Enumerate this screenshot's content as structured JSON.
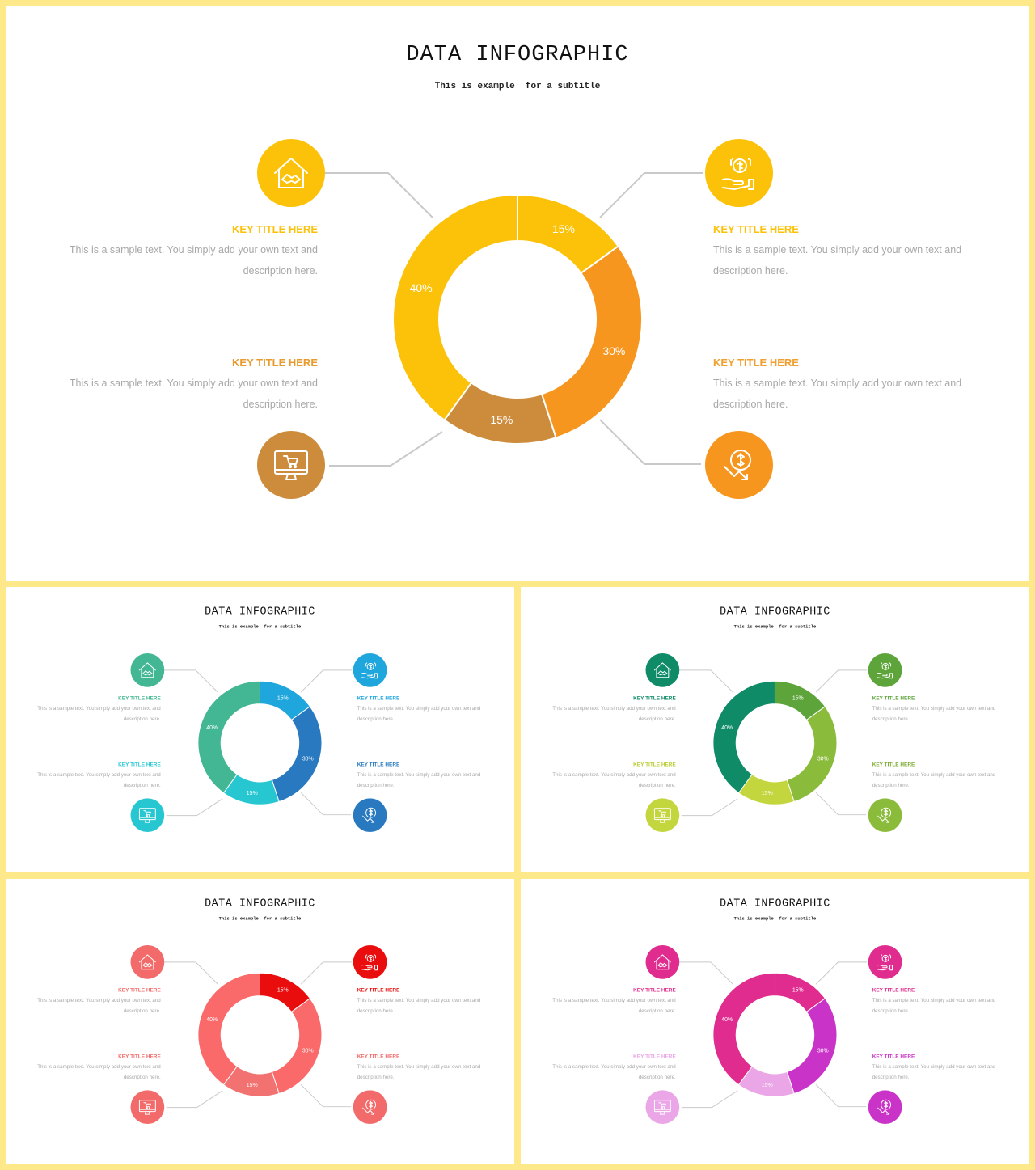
{
  "slides": [
    {
      "id": "main",
      "title": "DATA INFOGRAPHIC",
      "subtitle": "This is example  for a subtitle",
      "colors": {
        "s1": "#fcc209",
        "s2": "#f7961f",
        "s3": "#cd8b3c",
        "s4": "#fcc209",
        "i1": "#fcc209",
        "i2": "#fcc209",
        "i3": "#cd8b3c",
        "i4": "#f7961f",
        "k1": "#fcc209",
        "k2": "#fcc209",
        "k3": "#e99a2c",
        "k4": "#f0a030"
      },
      "items": [
        {
          "title": "KEY TITLE HERE",
          "desc": "This is a sample text. You simply add your own text and description here.",
          "icon": "house-handshake-icon"
        },
        {
          "title": "KEY TITLE HERE",
          "desc": "This is a sample text. You simply add your own text and description here.",
          "icon": "hand-coin-icon"
        },
        {
          "title": "KEY TITLE HERE",
          "desc": "This is a sample text. You simply add your own text and description here.",
          "icon": "monitor-cart-icon"
        },
        {
          "title": "KEY TITLE HERE",
          "desc": "This is a sample text. You simply add your own text and description here.",
          "icon": "dollar-down-icon"
        }
      ]
    },
    {
      "id": "blue",
      "title": "DATA INFOGRAPHIC",
      "subtitle": "This is example  for a subtitle",
      "colors": {
        "s1": "#1fa6dc",
        "s2": "#2879c0",
        "s3": "#27c7d2",
        "s4": "#43b793",
        "i1": "#43b793",
        "i2": "#1fa6dc",
        "i3": "#27c7d2",
        "i4": "#2879c0",
        "k1": "#43b793",
        "k2": "#1fa6dc",
        "k3": "#27c7d2",
        "k4": "#2879c0"
      },
      "items": [
        {
          "title": "KEY TITLE HERE",
          "desc": "This is a sample text. You simply add your own text and description here.",
          "icon": "house-handshake-icon"
        },
        {
          "title": "KEY TITLE HERE",
          "desc": "This is a sample text. You simply add your own text and description here.",
          "icon": "hand-coin-icon"
        },
        {
          "title": "KEY TITLE HERE",
          "desc": "This is a sample text. You simply add your own text and description here.",
          "icon": "monitor-cart-icon"
        },
        {
          "title": "KEY TITLE HERE",
          "desc": "This is a sample text. You simply add your own text and description here.",
          "icon": "dollar-down-icon"
        }
      ]
    },
    {
      "id": "green",
      "title": "DATA INFOGRAPHIC",
      "subtitle": "This is example  for a subtitle",
      "colors": {
        "s1": "#5da43a",
        "s2": "#8bbb3a",
        "s3": "#c3d63e",
        "s4": "#0f8b68",
        "i1": "#0f8b68",
        "i2": "#5da43a",
        "i3": "#c3d63e",
        "i4": "#8bbb3a",
        "k1": "#0f8b68",
        "k2": "#5da43a",
        "k3": "#b9cc2e",
        "k4": "#7aab30"
      },
      "items": [
        {
          "title": "KEY TITLE HERE",
          "desc": "This is a sample text. You simply add your own text and description here.",
          "icon": "house-handshake-icon"
        },
        {
          "title": "KEY TITLE HERE",
          "desc": "This is a sample text. You simply add your own text and description here.",
          "icon": "hand-coin-icon"
        },
        {
          "title": "KEY TITLE HERE",
          "desc": "This is a sample text. You simply add your own text and description here.",
          "icon": "monitor-cart-icon"
        },
        {
          "title": "KEY TITLE HERE",
          "desc": "This is a sample text. You simply add your own text and description here.",
          "icon": "dollar-down-icon"
        }
      ]
    },
    {
      "id": "red",
      "title": "DATA INFOGRAPHIC",
      "subtitle": "This is example  for a subtitle",
      "colors": {
        "s1": "#e90d0d",
        "s2": "#fa6a6a",
        "s3": "#f27272",
        "s4": "#fa6a6a",
        "i1": "#f26a6a",
        "i2": "#e90d0d",
        "i3": "#f26a6a",
        "i4": "#f26a6a",
        "k1": "#f26a6a",
        "k2": "#e90d0d",
        "k3": "#f26a6a",
        "k4": "#f26a6a"
      },
      "items": [
        {
          "title": "KEY TITLE HERE",
          "desc": "This is a sample text. You simply add your own text and description here.",
          "icon": "house-handshake-icon"
        },
        {
          "title": "KEY TITLE HERE",
          "desc": "This is a sample text. You simply add your own text and description here.",
          "icon": "hand-coin-icon"
        },
        {
          "title": "KEY TITLE HERE",
          "desc": "This is a sample text. You simply add your own text and description here.",
          "icon": "monitor-cart-icon"
        },
        {
          "title": "KEY TITLE HERE",
          "desc": "This is a sample text. You simply add your own text and description here.",
          "icon": "dollar-down-icon"
        }
      ]
    },
    {
      "id": "pink",
      "title": "DATA INFOGRAPHIC",
      "subtitle": "This is example  for a subtitle",
      "colors": {
        "s1": "#e02c8e",
        "s2": "#c933c7",
        "s3": "#eaa6e6",
        "s4": "#e02c8e",
        "i1": "#e02c8e",
        "i2": "#e02c8e",
        "i3": "#eaa6e6",
        "i4": "#c933c7",
        "k1": "#e02c8e",
        "k2": "#e02c8e",
        "k3": "#eaa6e6",
        "k4": "#c933c7"
      },
      "items": [
        {
          "title": "KEY TITLE HERE",
          "desc": "This is a sample text. You simply add your own text and description here.",
          "icon": "house-handshake-icon"
        },
        {
          "title": "KEY TITLE HERE",
          "desc": "This is a sample text. You simply add your own text and description here.",
          "icon": "hand-coin-icon"
        },
        {
          "title": "KEY TITLE HERE",
          "desc": "This is a sample text. You simply add your own text and description here.",
          "icon": "monitor-cart-icon"
        },
        {
          "title": "KEY TITLE HERE",
          "desc": "This is a sample text. You simply add your own text and description here.",
          "icon": "dollar-down-icon"
        }
      ]
    }
  ],
  "chart_data": [
    {
      "type": "pie",
      "donut": true,
      "categories": [
        "",
        "",
        "",
        ""
      ],
      "values": [
        15,
        30,
        15,
        40
      ],
      "labels": [
        "15%",
        "30%",
        "15%",
        "40%"
      ]
    },
    {
      "type": "pie",
      "donut": true,
      "categories": [
        "",
        "",
        "",
        ""
      ],
      "values": [
        15,
        30,
        15,
        40
      ],
      "labels": [
        "15%",
        "30%",
        "15%",
        "40%"
      ]
    },
    {
      "type": "pie",
      "donut": true,
      "categories": [
        "",
        "",
        "",
        ""
      ],
      "values": [
        15,
        30,
        15,
        40
      ],
      "labels": [
        "15%",
        "30%",
        "15%",
        "40%"
      ]
    },
    {
      "type": "pie",
      "donut": true,
      "categories": [
        "",
        "",
        "",
        ""
      ],
      "values": [
        15,
        30,
        15,
        40
      ],
      "labels": [
        "15%",
        "30%",
        "15%",
        "40%"
      ]
    },
    {
      "type": "pie",
      "donut": true,
      "categories": [
        "",
        "",
        "",
        ""
      ],
      "values": [
        15,
        30,
        15,
        40
      ],
      "labels": [
        "15%",
        "30%",
        "15%",
        "40%"
      ]
    }
  ]
}
